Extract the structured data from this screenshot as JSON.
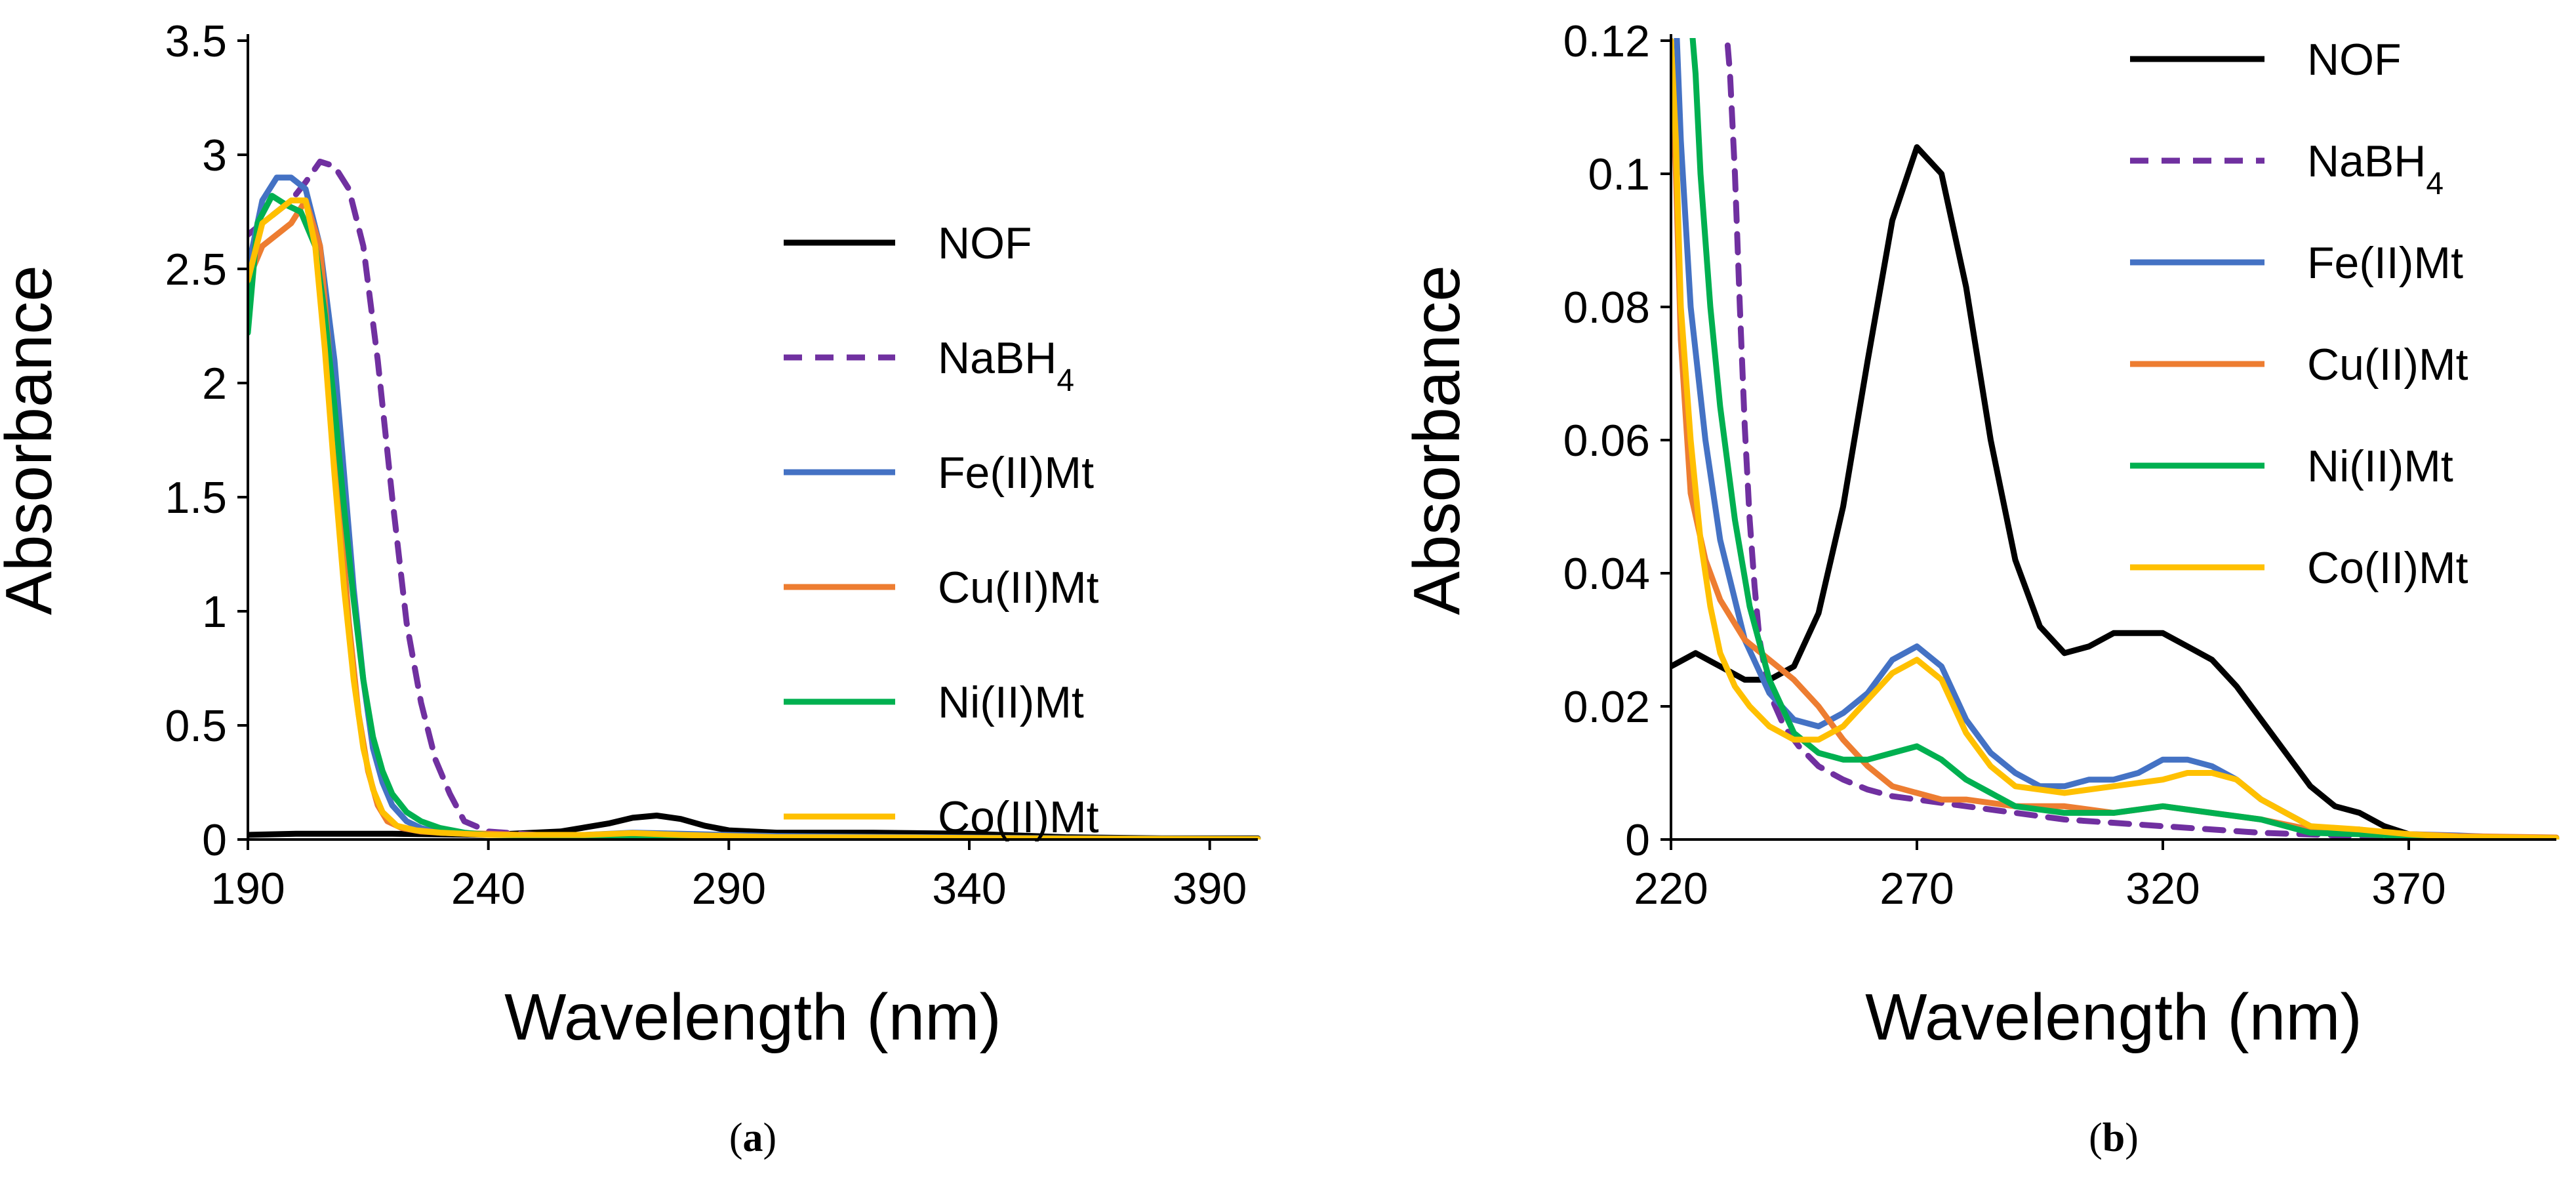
{
  "figure": {
    "panel_labels": [
      {
        "open": "(",
        "letter": "a",
        "close": ")"
      },
      {
        "open": "(",
        "letter": "b",
        "close": ")"
      }
    ]
  },
  "colors": {
    "NOF": "#000000",
    "NaBH4": "#7030A0",
    "Fe(II)Mt": "#4472C4",
    "Cu(II)Mt": "#ED7D31",
    "Ni(II)Mt": "#00B050",
    "Co(II)Mt": "#FFC000"
  },
  "chart_data": [
    {
      "type": "line",
      "panel": "a",
      "title": "",
      "xlabel": "Wavelength (nm)",
      "ylabel": "Absorbance",
      "xlim": [
        190,
        400
      ],
      "ylim": [
        0,
        3.5
      ],
      "xticks": [
        "190",
        "240",
        "290",
        "340",
        "390"
      ],
      "yticks": [
        "0",
        "0.5",
        "1",
        "1.5",
        "2",
        "2.5",
        "3",
        "3.5"
      ],
      "grid": false,
      "legend_position": "center-right",
      "series": [
        {
          "name": "NOF",
          "name_sub": "",
          "dash": "solid",
          "color": "#000000",
          "x": [
            190,
            200,
            220,
            240,
            255,
            265,
            270,
            275,
            280,
            285,
            290,
            300,
            320,
            340,
            360,
            380,
            400
          ],
          "y": [
            0.02,
            0.025,
            0.025,
            0.02,
            0.035,
            0.07,
            0.095,
            0.105,
            0.09,
            0.06,
            0.04,
            0.03,
            0.03,
            0.025,
            0.01,
            0.005,
            0.005
          ]
        },
        {
          "name": "NaBH",
          "name_sub": "4",
          "dash": "dashed",
          "color": "#7030A0",
          "x": [
            190,
            193,
            196,
            199,
            202,
            205,
            208,
            211,
            214,
            217,
            220,
            223,
            226,
            229,
            232,
            235,
            240,
            250,
            260,
            280,
            300,
            330,
            360,
            400
          ],
          "y": [
            2.65,
            2.7,
            2.75,
            2.8,
            2.88,
            2.97,
            2.95,
            2.85,
            2.6,
            2.1,
            1.5,
            0.95,
            0.6,
            0.35,
            0.2,
            0.08,
            0.035,
            0.02,
            0.015,
            0.01,
            0.008,
            0.005,
            0.003,
            0.002
          ]
        },
        {
          "name": "Fe(II)Mt",
          "name_sub": "",
          "dash": "solid",
          "color": "#4472C4",
          "x": [
            190,
            193,
            196,
            199,
            202,
            205,
            208,
            210,
            212,
            214,
            216,
            218,
            220,
            223,
            226,
            230,
            235,
            240,
            260,
            270,
            280,
            300,
            330,
            360,
            400
          ],
          "y": [
            2.5,
            2.8,
            2.9,
            2.9,
            2.85,
            2.6,
            2.1,
            1.6,
            1.1,
            0.7,
            0.4,
            0.25,
            0.15,
            0.08,
            0.05,
            0.03,
            0.025,
            0.02,
            0.02,
            0.03,
            0.025,
            0.015,
            0.01,
            0.005,
            0.003
          ]
        },
        {
          "name": "Cu(II)Mt",
          "name_sub": "",
          "dash": "solid",
          "color": "#ED7D31",
          "x": [
            190,
            193,
            196,
            199,
            202,
            205,
            207,
            209,
            211,
            213,
            215,
            217,
            219,
            222,
            226,
            230,
            240,
            260,
            280,
            300,
            330,
            360,
            400
          ],
          "y": [
            2.45,
            2.6,
            2.65,
            2.7,
            2.8,
            2.6,
            2.1,
            1.5,
            0.95,
            0.55,
            0.3,
            0.15,
            0.08,
            0.05,
            0.035,
            0.03,
            0.025,
            0.01,
            0.008,
            0.006,
            0.004,
            0.002,
            0.001
          ]
        },
        {
          "name": "Ni(II)Mt",
          "name_sub": "",
          "dash": "solid",
          "color": "#00B050",
          "x": [
            190,
            192,
            195,
            198,
            201,
            204,
            206,
            208,
            210,
            212,
            214,
            216,
            218,
            220,
            223,
            226,
            230,
            235,
            240,
            260,
            270,
            280,
            300,
            330,
            360,
            400
          ],
          "y": [
            2.22,
            2.7,
            2.82,
            2.78,
            2.75,
            2.6,
            2.3,
            1.9,
            1.45,
            1.05,
            0.7,
            0.45,
            0.3,
            0.2,
            0.12,
            0.08,
            0.05,
            0.03,
            0.02,
            0.015,
            0.015,
            0.01,
            0.006,
            0.004,
            0.002,
            0.001
          ]
        },
        {
          "name": "Co(II)Mt",
          "name_sub": "",
          "dash": "solid",
          "color": "#FFC000",
          "x": [
            190,
            193,
            196,
            199,
            202,
            204,
            206,
            208,
            210,
            212,
            214,
            216,
            218,
            221,
            225,
            230,
            240,
            260,
            270,
            280,
            300,
            330,
            360,
            400
          ],
          "y": [
            2.45,
            2.7,
            2.75,
            2.8,
            2.8,
            2.6,
            2.15,
            1.6,
            1.1,
            0.7,
            0.4,
            0.22,
            0.12,
            0.06,
            0.04,
            0.03,
            0.02,
            0.02,
            0.028,
            0.02,
            0.01,
            0.008,
            0.004,
            0.002
          ]
        }
      ]
    },
    {
      "type": "line",
      "panel": "b",
      "title": "",
      "xlabel": "Wavelength (nm)",
      "ylabel": "Absorbance",
      "xlim": [
        220,
        400
      ],
      "ylim": [
        0,
        0.12
      ],
      "xticks": [
        "220",
        "270",
        "320",
        "370"
      ],
      "yticks": [
        "0",
        "0.02",
        "0.04",
        "0.06",
        "0.08",
        "0.1",
        "0.12"
      ],
      "grid": false,
      "legend_position": "top-right",
      "series": [
        {
          "name": "NOF",
          "name_sub": "",
          "dash": "solid",
          "color": "#000000",
          "x": [
            220,
            225,
            230,
            235,
            240,
            245,
            250,
            255,
            260,
            265,
            270,
            275,
            280,
            285,
            290,
            295,
            300,
            305,
            310,
            315,
            320,
            325,
            330,
            335,
            340,
            345,
            350,
            355,
            360,
            365,
            370,
            375,
            380,
            385,
            390,
            395,
            400
          ],
          "y": [
            0.026,
            0.028,
            0.026,
            0.024,
            0.024,
            0.026,
            0.034,
            0.05,
            0.072,
            0.093,
            0.104,
            0.1,
            0.083,
            0.06,
            0.042,
            0.032,
            0.028,
            0.029,
            0.031,
            0.031,
            0.031,
            0.029,
            0.027,
            0.023,
            0.018,
            0.013,
            0.008,
            0.005,
            0.004,
            0.002,
            0.0008,
            0.0004,
            0.0003,
            0.0002,
            0.0002,
            0.0001,
            0.0001
          ]
        },
        {
          "name": "NaBH",
          "name_sub": "4",
          "dash": "dashed",
          "color": "#7030A0",
          "x": [
            231,
            232,
            233,
            234,
            235,
            236,
            237,
            238,
            240,
            243,
            246,
            250,
            255,
            260,
            265,
            270,
            280,
            290,
            300,
            320,
            340,
            360,
            380,
            400
          ],
          "y": [
            0.124,
            0.115,
            0.1,
            0.08,
            0.062,
            0.048,
            0.038,
            0.03,
            0.022,
            0.017,
            0.014,
            0.011,
            0.009,
            0.0075,
            0.0065,
            0.006,
            0.005,
            0.004,
            0.003,
            0.002,
            0.001,
            0.0005,
            0.0003,
            0.0002
          ]
        },
        {
          "name": "Fe(II)Mt",
          "name_sub": "",
          "dash": "solid",
          "color": "#4472C4",
          "x": [
            221,
            222,
            224,
            227,
            230,
            235,
            240,
            245,
            250,
            255,
            260,
            265,
            270,
            275,
            280,
            285,
            290,
            295,
            300,
            305,
            310,
            315,
            320,
            325,
            330,
            335,
            340,
            345,
            350,
            355,
            360,
            365,
            370,
            380,
            390,
            400
          ],
          "y": [
            0.124,
            0.105,
            0.08,
            0.06,
            0.045,
            0.03,
            0.022,
            0.018,
            0.017,
            0.019,
            0.022,
            0.027,
            0.029,
            0.026,
            0.018,
            0.013,
            0.01,
            0.008,
            0.008,
            0.009,
            0.009,
            0.01,
            0.012,
            0.012,
            0.011,
            0.009,
            0.006,
            0.004,
            0.002,
            0.0015,
            0.0015,
            0.001,
            0.0008,
            0.0006,
            0.0003,
            0.0002
          ]
        },
        {
          "name": "Cu(II)Mt",
          "name_sub": "",
          "dash": "solid",
          "color": "#ED7D31",
          "x": [
            220,
            221,
            222,
            224,
            227,
            230,
            235,
            240,
            245,
            250,
            255,
            260,
            265,
            270,
            275,
            280,
            290,
            300,
            310,
            320,
            330,
            340,
            350,
            360,
            370,
            380,
            400
          ],
          "y": [
            0.12,
            0.1,
            0.075,
            0.052,
            0.042,
            0.036,
            0.03,
            0.027,
            0.024,
            0.02,
            0.015,
            0.011,
            0.008,
            0.007,
            0.006,
            0.006,
            0.005,
            0.005,
            0.004,
            0.005,
            0.004,
            0.003,
            0.0015,
            0.001,
            0.0008,
            0.0005,
            0.0003
          ]
        },
        {
          "name": "Ni(II)Mt",
          "name_sub": "",
          "dash": "solid",
          "color": "#00B050",
          "x": [
            224,
            225,
            226,
            227,
            228,
            230,
            233,
            236,
            240,
            245,
            250,
            255,
            260,
            265,
            270,
            275,
            280,
            285,
            290,
            300,
            310,
            320,
            330,
            340,
            345,
            350,
            360,
            370,
            380,
            400
          ],
          "y": [
            0.124,
            0.115,
            0.1,
            0.09,
            0.08,
            0.065,
            0.048,
            0.035,
            0.024,
            0.016,
            0.013,
            0.012,
            0.012,
            0.013,
            0.014,
            0.012,
            0.009,
            0.007,
            0.005,
            0.004,
            0.004,
            0.005,
            0.004,
            0.003,
            0.002,
            0.001,
            0.0008,
            0.0005,
            0.0003,
            0.0002
          ]
        },
        {
          "name": "Co(II)Mt",
          "name_sub": "",
          "dash": "solid",
          "color": "#FFC000",
          "x": [
            220,
            221,
            222,
            224,
            226,
            228,
            230,
            233,
            236,
            240,
            245,
            250,
            255,
            260,
            265,
            270,
            275,
            280,
            285,
            290,
            300,
            310,
            320,
            325,
            330,
            335,
            340,
            345,
            350,
            360,
            370,
            380,
            400
          ],
          "y": [
            0.12,
            0.105,
            0.08,
            0.06,
            0.045,
            0.035,
            0.028,
            0.023,
            0.02,
            0.017,
            0.015,
            0.015,
            0.017,
            0.021,
            0.025,
            0.027,
            0.024,
            0.016,
            0.011,
            0.008,
            0.007,
            0.008,
            0.009,
            0.01,
            0.01,
            0.009,
            0.006,
            0.004,
            0.002,
            0.0015,
            0.0008,
            0.0004,
            0.0002
          ]
        }
      ]
    }
  ]
}
